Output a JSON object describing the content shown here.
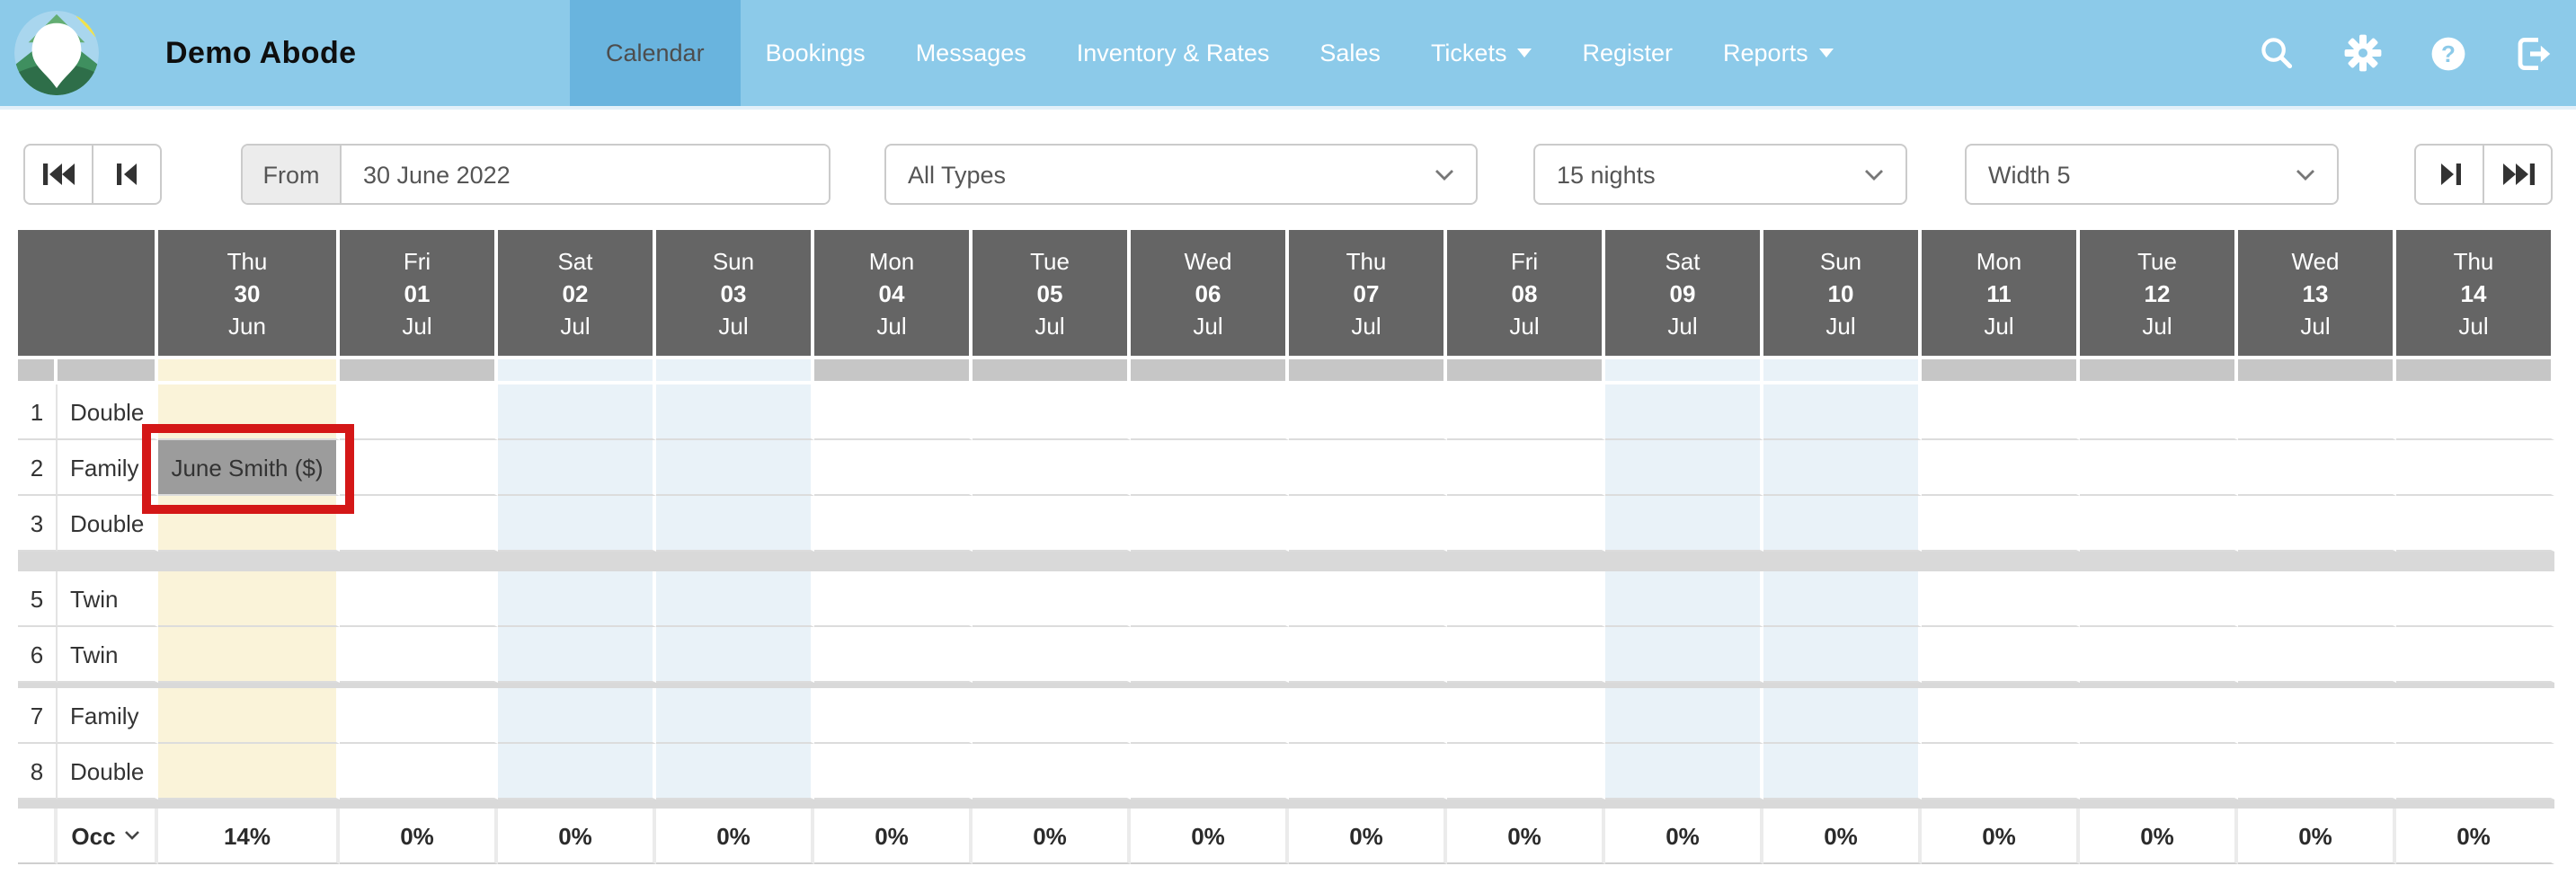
{
  "topbar": {
    "title": "Demo Abode",
    "nav": [
      {
        "label": "Calendar",
        "active": true
      },
      {
        "label": "Bookings"
      },
      {
        "label": "Messages"
      },
      {
        "label": "Inventory & Rates"
      },
      {
        "label": "Sales"
      },
      {
        "label": "Tickets",
        "dropdown": true
      },
      {
        "label": "Register"
      },
      {
        "label": "Reports",
        "dropdown": true
      }
    ],
    "icons": [
      "search-icon",
      "settings-gear-icon",
      "help-icon",
      "logout-icon"
    ]
  },
  "toolbar": {
    "from_label": "From",
    "from_value": "30 June 2022",
    "filters": {
      "type": "All Types",
      "nights": "15 nights",
      "width": "Width 5"
    },
    "pager_icons": [
      "jump-back-icon",
      "step-back-icon",
      "step-forward-icon",
      "jump-forward-icon"
    ]
  },
  "calendar": {
    "days": [
      {
        "dow": "Thu",
        "day": "30",
        "month": "Jun",
        "weekend": false,
        "selected": true
      },
      {
        "dow": "Fri",
        "day": "01",
        "month": "Jul",
        "weekend": false
      },
      {
        "dow": "Sat",
        "day": "02",
        "month": "Jul",
        "weekend": true
      },
      {
        "dow": "Sun",
        "day": "03",
        "month": "Jul",
        "weekend": true
      },
      {
        "dow": "Mon",
        "day": "04",
        "month": "Jul",
        "weekend": false
      },
      {
        "dow": "Tue",
        "day": "05",
        "month": "Jul",
        "weekend": false
      },
      {
        "dow": "Wed",
        "day": "06",
        "month": "Jul",
        "weekend": false
      },
      {
        "dow": "Thu",
        "day": "07",
        "month": "Jul",
        "weekend": false
      },
      {
        "dow": "Fri",
        "day": "08",
        "month": "Jul",
        "weekend": false
      },
      {
        "dow": "Sat",
        "day": "09",
        "month": "Jul",
        "weekend": true
      },
      {
        "dow": "Sun",
        "day": "10",
        "month": "Jul",
        "weekend": true
      },
      {
        "dow": "Mon",
        "day": "11",
        "month": "Jul",
        "weekend": false
      },
      {
        "dow": "Tue",
        "day": "12",
        "month": "Jul",
        "weekend": false
      },
      {
        "dow": "Wed",
        "day": "13",
        "month": "Jul",
        "weekend": false
      },
      {
        "dow": "Thu",
        "day": "14",
        "month": "Jul",
        "weekend": false
      }
    ],
    "room_sections": [
      [
        {
          "number": "1",
          "type": "Double"
        },
        {
          "number": "2",
          "type": "Family"
        },
        {
          "number": "3",
          "type": "Double"
        }
      ],
      [
        {
          "number": "5",
          "type": "Twin"
        },
        {
          "number": "6",
          "type": "Twin"
        }
      ],
      [
        {
          "number": "7",
          "type": "Family"
        },
        {
          "number": "8",
          "type": "Double"
        }
      ]
    ],
    "booking": {
      "room": "2",
      "day_index": 0,
      "label": "June Smith ($)",
      "annotated": true
    },
    "occupancy": {
      "label": "Occ",
      "values": [
        "14%",
        "0%",
        "0%",
        "0%",
        "0%",
        "0%",
        "0%",
        "0%",
        "0%",
        "0%",
        "0%",
        "0%",
        "0%",
        "0%",
        "0%"
      ]
    }
  },
  "colors": {
    "topbar_blue": "#8ccae9",
    "active_tab_blue": "#69b4de",
    "header_cell_gray": "#656565",
    "selected_day_column": "#faf3d9",
    "weekend_column": "#e9f2f8",
    "overflow_strip_gray": "#c6c6c6",
    "separator_gray": "#d9d9d9",
    "booking_chip_gray": "#9c9c9c",
    "annotation_red": "#d41717"
  }
}
